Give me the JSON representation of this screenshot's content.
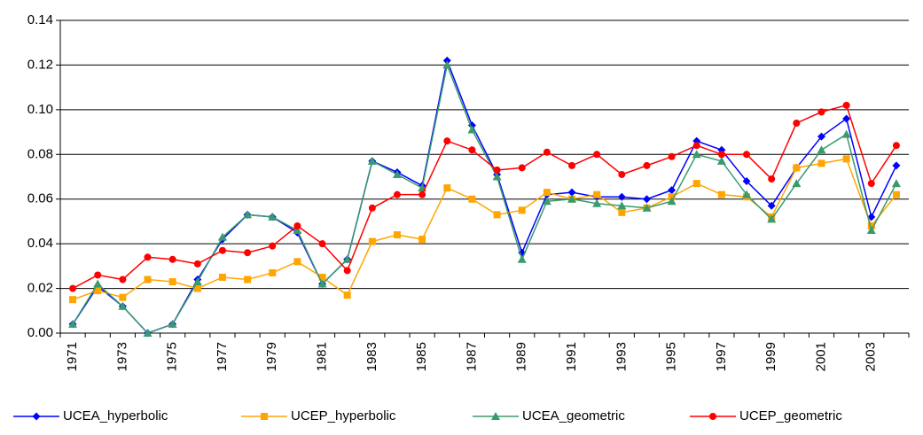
{
  "chart_data": {
    "type": "line",
    "categories": [
      "1971",
      null,
      "1973",
      null,
      "1975",
      null,
      "1977",
      null,
      "1979",
      null,
      "1981",
      null,
      "1983",
      null,
      "1985",
      null,
      "1987",
      null,
      "1989",
      null,
      "1991",
      null,
      "1993",
      null,
      "1995",
      null,
      "1997",
      null,
      "1999",
      null,
      "2001",
      null,
      "2003",
      null
    ],
    "series": [
      {
        "name": "UCEA_hyperbolic",
        "color": "#0000ff",
        "marker": "diamond",
        "values": [
          0.004,
          0.021,
          0.012,
          0.0,
          0.004,
          0.024,
          0.042,
          0.053,
          0.052,
          0.045,
          0.022,
          0.033,
          0.077,
          0.072,
          0.066,
          0.122,
          0.093,
          0.071,
          0.036,
          0.062,
          0.063,
          0.061,
          0.061,
          0.06,
          0.064,
          0.086,
          0.082,
          0.068,
          0.057,
          0.074,
          0.088,
          0.096,
          0.052,
          0.075
        ]
      },
      {
        "name": "UCEP_hyperbolic",
        "color": "#ffa500",
        "marker": "square",
        "values": [
          0.015,
          0.019,
          0.016,
          0.024,
          0.023,
          0.02,
          0.025,
          0.024,
          0.027,
          0.032,
          0.025,
          0.017,
          0.041,
          0.044,
          0.042,
          0.065,
          0.06,
          0.053,
          0.055,
          0.063,
          0.06,
          0.062,
          0.054,
          0.056,
          0.061,
          0.067,
          0.062,
          0.061,
          0.052,
          0.074,
          0.076,
          0.078,
          0.048,
          0.062
        ]
      },
      {
        "name": "UCEA_geometric",
        "color": "#3a9a6e",
        "marker": "triangle",
        "values": [
          0.004,
          0.022,
          0.012,
          0.0,
          0.004,
          0.023,
          0.043,
          0.053,
          0.052,
          0.046,
          0.022,
          0.033,
          0.077,
          0.071,
          0.065,
          0.12,
          0.091,
          0.07,
          0.033,
          0.059,
          0.06,
          0.058,
          0.057,
          0.056,
          0.059,
          0.08,
          0.077,
          0.062,
          0.051,
          0.067,
          0.082,
          0.089,
          0.046,
          0.067
        ]
      },
      {
        "name": "UCEP_geometric",
        "color": "#ff0000",
        "marker": "circle",
        "values": [
          0.02,
          0.026,
          0.024,
          0.034,
          0.033,
          0.031,
          0.037,
          0.036,
          0.039,
          0.048,
          0.04,
          0.028,
          0.056,
          0.062,
          0.062,
          0.086,
          0.082,
          0.073,
          0.074,
          0.081,
          0.075,
          0.08,
          0.071,
          0.075,
          0.079,
          0.084,
          0.08,
          0.08,
          0.069,
          0.094,
          0.099,
          0.102,
          0.067,
          0.084
        ]
      }
    ],
    "ylim": [
      0,
      0.14
    ],
    "yticks": [
      {
        "value": 0,
        "label": "0.00"
      },
      0.02,
      0.04,
      0.06,
      0.08,
      {
        "value": 0.1,
        "label": "0.10"
      },
      0.12,
      0.14
    ],
    "grid": true,
    "legend": "bottom"
  }
}
